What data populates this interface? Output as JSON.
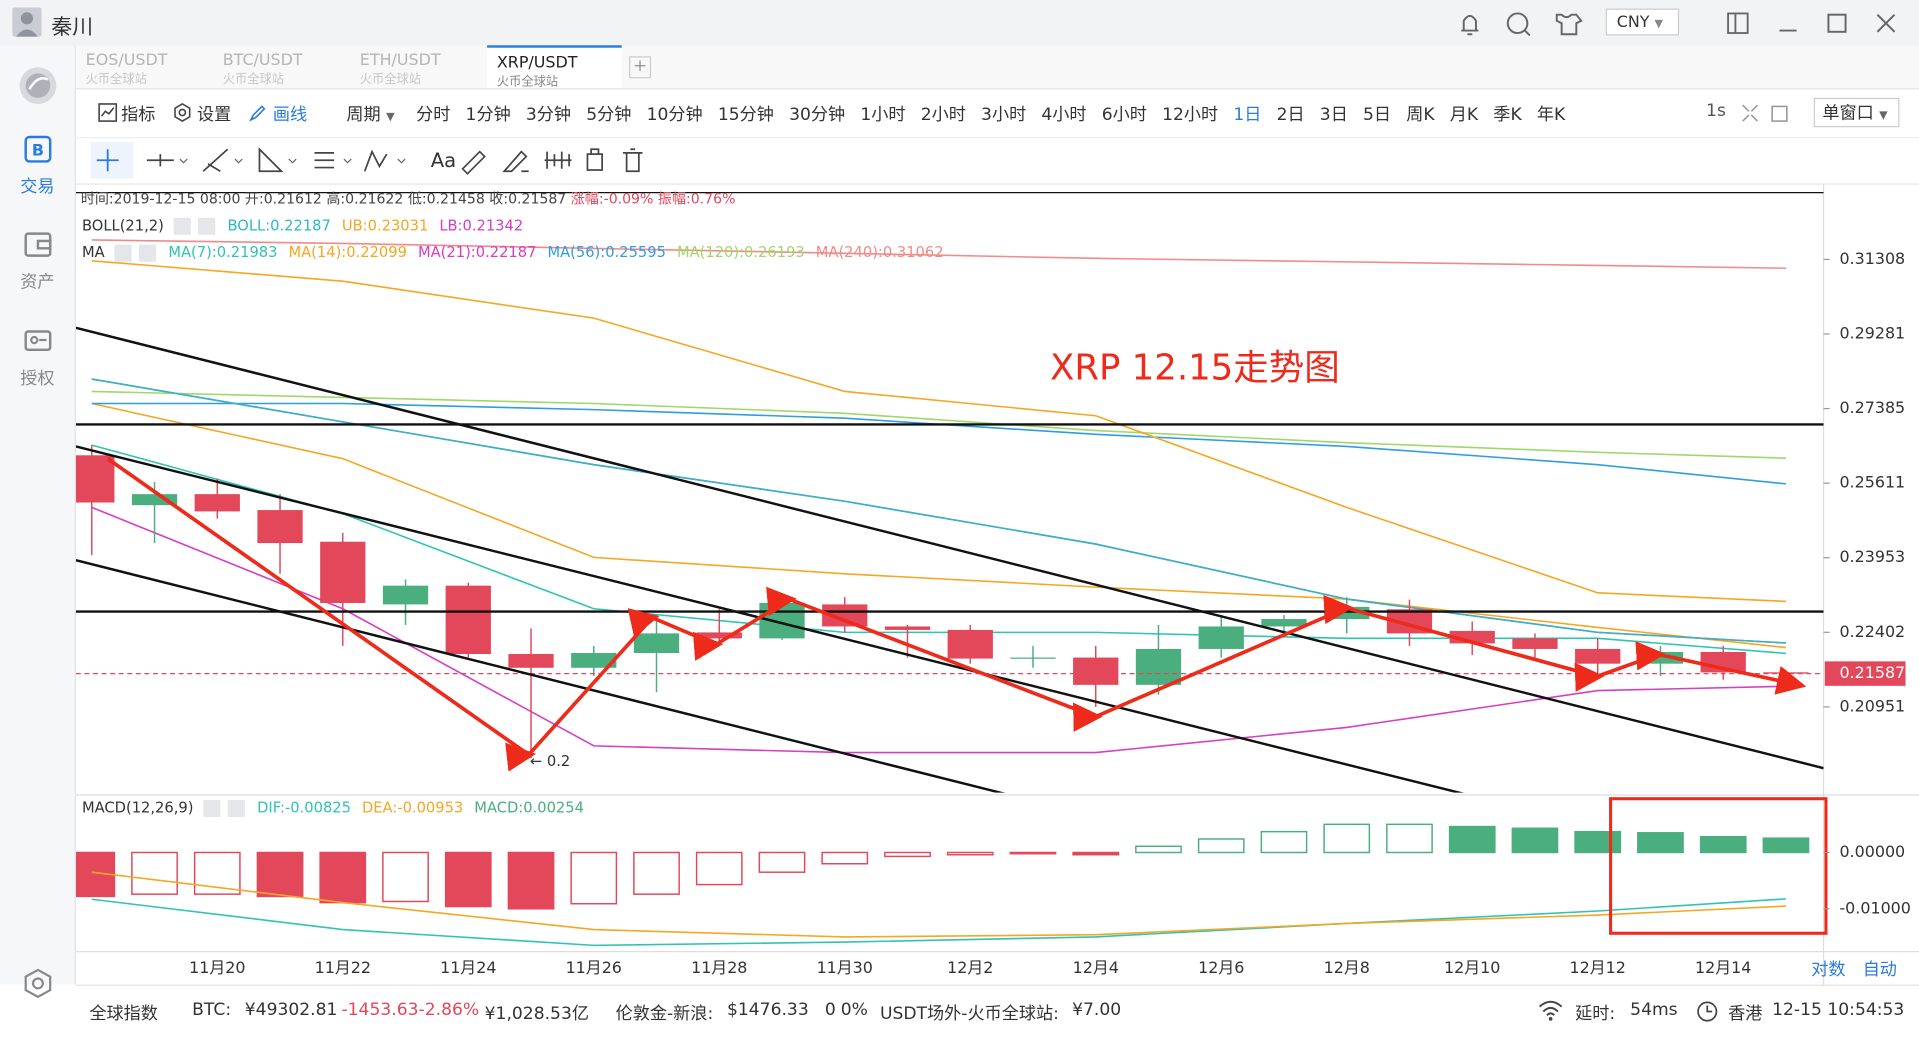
{
  "window": {
    "user": "秦川",
    "currency": "CNY"
  },
  "sidebar": [
    {
      "label": "交易",
      "active": true
    },
    {
      "label": "资产"
    },
    {
      "label": "授权"
    }
  ],
  "tabs": [
    {
      "pair": "EOS/USDT",
      "exchange": "火币全球站"
    },
    {
      "pair": "BTC/USDT",
      "exchange": "火币全球站"
    },
    {
      "pair": "ETH/USDT",
      "exchange": "火币全球站"
    },
    {
      "pair": "XRP/USDT",
      "exchange": "火币全球站",
      "active": true
    }
  ],
  "toolbar": {
    "items": [
      {
        "label": "指标"
      },
      {
        "label": "设置"
      },
      {
        "label": "画线",
        "active": true
      }
    ],
    "period_label": "周期",
    "periods": [
      "分时",
      "1分钟",
      "3分钟",
      "5分钟",
      "10分钟",
      "15分钟",
      "30分钟",
      "1小时",
      "2小时",
      "3小时",
      "4小时",
      "6小时",
      "12小时",
      "1日",
      "2日",
      "3日",
      "5日",
      "周K",
      "月K",
      "季K",
      "年K"
    ],
    "active_period": "1日",
    "refresh": "1s",
    "layout_mode": "单窗口",
    "tools_text": "Aa"
  },
  "info": {
    "time": "时间:2019-12-15 08:00",
    "open": "开:0.21612",
    "high": "高:0.21622",
    "low": "低:0.21458",
    "close": "收:0.21587",
    "change": "涨幅:-0.09%",
    "amplitude": "振幅:0.76%"
  },
  "chart_data": {
    "type": "candlestick",
    "annotation": "XRP 12.15走势图",
    "low_marker": "← 0.2",
    "categories": [
      null,
      null,
      "11月20",
      null,
      "11月22",
      null,
      "11月24",
      null,
      "11月26",
      null,
      "11月28",
      null,
      "11月30",
      null,
      "12月2",
      null,
      "12月4",
      null,
      "12月6",
      null,
      "12月8",
      null,
      "12月10",
      null,
      "12月12",
      null,
      "12月14",
      null
    ],
    "open": [
      0.2626,
      0.2511,
      0.2536,
      0.25,
      0.243,
      0.2297,
      0.2336,
      0.2197,
      0.217,
      0.2199,
      0.224,
      0.2228,
      0.2297,
      0.2252,
      0.2245,
      0.2188,
      0.219,
      0.2137,
      0.2207,
      0.2252,
      0.2267,
      0.2287,
      0.2243,
      0.2228,
      0.2207,
      0.2178,
      0.2201,
      0.21612
    ],
    "high": [
      0.265,
      0.2564,
      0.2572,
      0.2536,
      0.2449,
      0.2349,
      0.2342,
      0.2248,
      0.2213,
      0.2275,
      0.2287,
      0.2317,
      0.2312,
      0.2255,
      0.2255,
      0.2213,
      0.2213,
      0.2255,
      0.2275,
      0.2275,
      0.2312,
      0.2307,
      0.2262,
      0.2238,
      0.2228,
      0.2213,
      0.2213,
      0.21622
    ],
    "low": [
      0.2401,
      0.2427,
      0.2481,
      0.2361,
      0.2213,
      0.2255,
      0.219,
      0.2001,
      0.2154,
      0.2123,
      0.2213,
      0.2225,
      0.224,
      0.219,
      0.2178,
      0.217,
      0.2095,
      0.2118,
      0.219,
      0.2238,
      0.2238,
      0.2213,
      0.2195,
      0.219,
      0.2154,
      0.2154,
      0.2147,
      0.21458
    ],
    "close": [
      0.2517,
      0.2536,
      0.2497,
      0.2427,
      0.23,
      0.2336,
      0.2197,
      0.217,
      0.2199,
      0.2238,
      0.2228,
      0.23,
      0.2252,
      0.2245,
      0.2188,
      0.219,
      0.2137,
      0.2207,
      0.2252,
      0.2267,
      0.2292,
      0.2238,
      0.2218,
      0.2207,
      0.2178,
      0.2201,
      0.2161,
      0.21587
    ],
    "up_color": "#4aae7e",
    "down_color": "#e2485a",
    "log_scale": true,
    "ylim": [
      0.194,
      0.3326
    ],
    "yticks": [
      0.31308,
      0.29281,
      0.27385,
      0.25611,
      0.23953,
      0.22402,
      0.20951
    ],
    "price_line": 0.21587,
    "boll": {
      "label": "BOLL(21,2)",
      "series": [
        {
          "name": "BOLL:0.22187",
          "color": "#2fb8c4",
          "x": [
            0,
            4,
            8,
            12,
            16,
            20,
            24,
            27
          ],
          "values": [
            0.2812,
            0.2706,
            0.2604,
            0.252,
            0.2425,
            0.2308,
            0.224,
            0.22187
          ]
        },
        {
          "name": "UB:0.23031",
          "color": "#f5a623",
          "x": [
            0,
            4,
            8,
            12,
            16,
            20,
            24,
            27
          ],
          "values": [
            0.3127,
            0.307,
            0.297,
            0.2781,
            0.2721,
            0.2506,
            0.2321,
            0.23031
          ]
        },
        {
          "name": "LB:0.21342",
          "color": "#d63fc2",
          "x": [
            0,
            4,
            8,
            12,
            16,
            20,
            24,
            27
          ],
          "values": [
            0.2506,
            0.2288,
            0.2023,
            0.2011,
            0.2011,
            0.2057,
            0.2126,
            0.21342
          ]
        }
      ]
    },
    "ma": {
      "label": "MA",
      "series": [
        {
          "name": "MA(7):0.21983",
          "color": "#2fc4b0",
          "x": [
            0,
            4,
            8,
            12,
            16,
            20,
            24,
            27
          ],
          "values": [
            0.265,
            0.2492,
            0.2288,
            0.224,
            0.224,
            0.2228,
            0.2228,
            0.21983
          ]
        },
        {
          "name": "MA(14):0.22099",
          "color": "#f5a623",
          "x": [
            0,
            4,
            8,
            12,
            16,
            20,
            24,
            27
          ],
          "values": [
            0.2751,
            0.2618,
            0.2396,
            0.2361,
            0.2333,
            0.2308,
            0.225,
            0.22099
          ]
        },
        {
          "name": "MA(21):0.22187",
          "color": "#d63fc2",
          "x": [
            0,
            4,
            8,
            12,
            16,
            20,
            24,
            27
          ],
          "values": [
            0.2812,
            0.2706,
            0.2604,
            0.252,
            0.2425,
            0.2308,
            0.224,
            0.22187
          ]
        },
        {
          "name": "MA(56):0.25595",
          "color": "#2f9ee0",
          "x": [
            0,
            4,
            8,
            12,
            16,
            20,
            24,
            27
          ],
          "values": [
            0.2751,
            0.2751,
            0.2736,
            0.2715,
            0.2676,
            0.2647,
            0.2604,
            0.25595
          ]
        },
        {
          "name": "MA(120):0.26193",
          "color": "#9fd86a",
          "x": [
            0,
            4,
            8,
            12,
            16,
            20,
            24,
            27
          ],
          "values": [
            0.2781,
            0.2766,
            0.2751,
            0.2727,
            0.2685,
            0.2656,
            0.2633,
            0.26193
          ]
        },
        {
          "name": "MA(240):0.31062",
          "color": "#f28a8a",
          "x": [
            0,
            4,
            8,
            12,
            16,
            20,
            24,
            27
          ],
          "values": [
            0.3186,
            0.3176,
            0.3162,
            0.3148,
            0.3134,
            0.3124,
            0.3114,
            0.31062
          ]
        }
      ]
    },
    "macd": {
      "label": "MACD(12,26,9)",
      "ylim": [
        -0.0176,
        0.0102
      ],
      "yticks": [
        {
          "value": 0,
          "label": "0.00000"
        },
        {
          "value": -0.01,
          "label": "-0.01000"
        }
      ],
      "series": [
        {
          "name": "DIF:-0.00825",
          "color": "#2fc4b0",
          "x": [
            0,
            4,
            8,
            12,
            16,
            20,
            24,
            27
          ],
          "values": [
            -0.0083,
            -0.0137,
            -0.0165,
            -0.0159,
            -0.015,
            -0.0126,
            -0.0104,
            -0.00825
          ]
        },
        {
          "name": "DEA:-0.00953",
          "color": "#f5a623",
          "x": [
            0,
            4,
            8,
            12,
            16,
            20,
            24,
            27
          ],
          "values": [
            -0.0035,
            -0.0089,
            -0.0137,
            -0.015,
            -0.0146,
            -0.0126,
            -0.0111,
            -0.00953
          ]
        }
      ],
      "histogram": {
        "name": "MACD:0.00254",
        "color": "#4aae7e",
        "values": [
          -0.0078,
          -0.0074,
          -0.0074,
          -0.0078,
          -0.0089,
          -0.0087,
          -0.0096,
          -0.01,
          -0.0091,
          -0.0074,
          -0.0057,
          -0.0035,
          -0.002,
          -0.0007,
          -0.0004,
          -0.0002,
          -0.0004,
          0.0011,
          0.0024,
          0.0037,
          0.005,
          0.005,
          0.0046,
          0.0043,
          0.0037,
          0.0035,
          0.0028,
          0.00254
        ]
      }
    }
  },
  "axis_buttons": [
    "对数",
    "自动"
  ],
  "status": {
    "global_index": "全球指数",
    "btc_label": "BTC:",
    "btc_price": "¥49302.81",
    "btc_change": "-1453.63",
    "btc_change_pct": "-2.86%",
    "btc_volume": "¥1,028.53亿",
    "gold_label": "伦敦金-新浪:",
    "gold_price": "$1476.33",
    "gold_change": "0",
    "gold_change_pct": "0%",
    "usdt_label": "USDT场外-火币全球站:",
    "usdt_price": "¥7.00",
    "latency_label": "延时:",
    "latency": "54ms",
    "region": "香港",
    "clock": "12-15 10:54:53"
  }
}
